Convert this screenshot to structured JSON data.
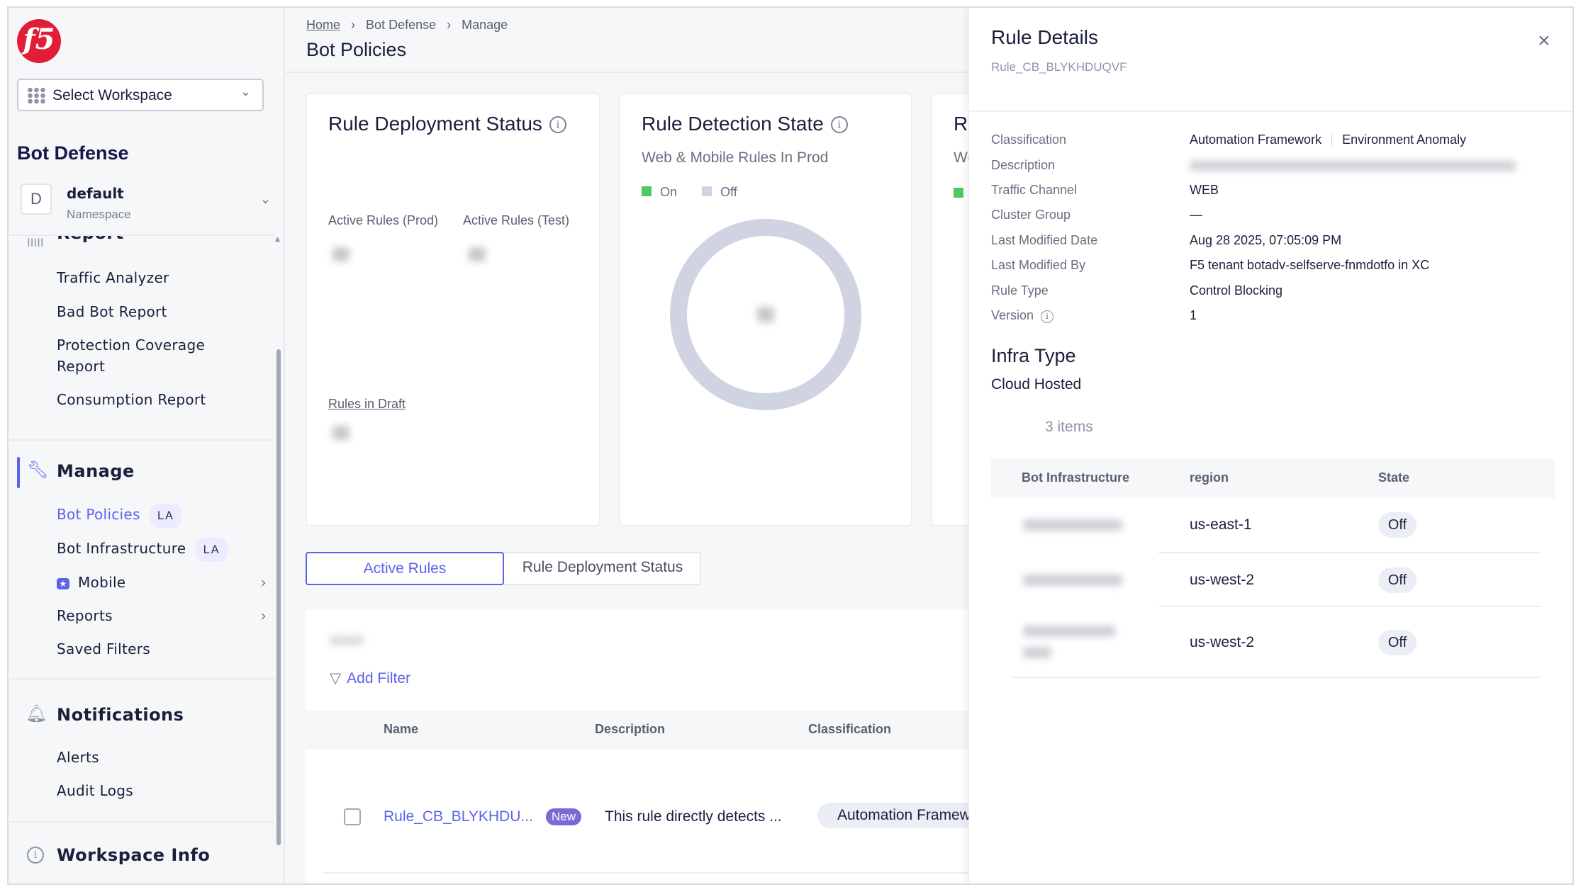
{
  "sidebar": {
    "logo_text": "f5",
    "workspace_select": "Select Workspace",
    "section_title": "Bot Defense",
    "namespace": {
      "initial": "D",
      "name": "default",
      "label": "Namespace"
    },
    "report": {
      "label": "Report",
      "items": [
        "Traffic Analyzer",
        "Bad Bot Report",
        "Protection Coverage Report",
        "Consumption Report"
      ]
    },
    "manage": {
      "label": "Manage",
      "items": [
        {
          "label": "Bot Policies",
          "badge": "LA",
          "active": true
        },
        {
          "label": "Bot Infrastructure",
          "badge": "LA"
        },
        {
          "label": "Mobile",
          "has_submenu": true
        },
        {
          "label": "Reports",
          "has_submenu": true
        },
        {
          "label": "Saved Filters"
        }
      ]
    },
    "notifications": {
      "label": "Notifications",
      "items": [
        "Alerts",
        "Audit Logs"
      ]
    },
    "workspace_info": "Workspace Info"
  },
  "header": {
    "breadcrumb": [
      "Home",
      "Bot Defense",
      "Manage"
    ],
    "title": "Bot Policies"
  },
  "cards": {
    "deployment": {
      "title": "Rule Deployment Status",
      "active_prod": "Active Rules (Prod)",
      "active_test": "Active Rules (Test)",
      "draft": "Rules in Draft"
    },
    "detection": {
      "title": "Rule Detection State",
      "subtitle": "Web & Mobile Rules In Prod",
      "legend_on": "On",
      "legend_off": "Off"
    },
    "third": {
      "title": "Ru",
      "subtitle": "We"
    }
  },
  "colors": {
    "accent": "#5b63e8",
    "on": "#4cc964",
    "off": "#d0d3e2",
    "badge_new": "#7b6ad6"
  },
  "tabs": [
    "Active Rules",
    "Rule Deployment Status"
  ],
  "table": {
    "add_filter": "Add Filter",
    "columns": [
      "Name",
      "Description",
      "Classification"
    ],
    "rows": [
      {
        "name": "Rule_CB_BLYKHDU...",
        "badge": "New",
        "description": "This rule directly detects ...",
        "classification": "Automation Framew"
      }
    ]
  },
  "drawer": {
    "title": "Rule Details",
    "subtitle": "Rule_CB_BLYKHDUQVF",
    "fields": [
      {
        "label": "Classification",
        "value": "Automation Framework",
        "value2": "Environment Anomaly"
      },
      {
        "label": "Description",
        "value": ""
      },
      {
        "label": "Traffic Channel",
        "value": "WEB"
      },
      {
        "label": "Cluster Group",
        "value": "—"
      },
      {
        "label": "Last Modified Date",
        "value": "Aug 28 2025, 07:05:09 PM"
      },
      {
        "label": "Last Modified By",
        "value": "F5 tenant botadv-selfserve-fnmdotfo in XC"
      },
      {
        "label": "Rule Type",
        "value": "Control Blocking"
      },
      {
        "label": "Version",
        "value": "1"
      }
    ],
    "infra_title": "Infra Type",
    "infra_value": "Cloud Hosted",
    "items_count": "3 items",
    "infra_columns": [
      "Bot Infrastructure",
      "region",
      "State"
    ],
    "infra_rows": [
      {
        "region": "us-east-1",
        "state": "Off"
      },
      {
        "region": "us-west-2",
        "state": "Off"
      },
      {
        "region": "us-west-2",
        "state": "Off"
      }
    ]
  }
}
